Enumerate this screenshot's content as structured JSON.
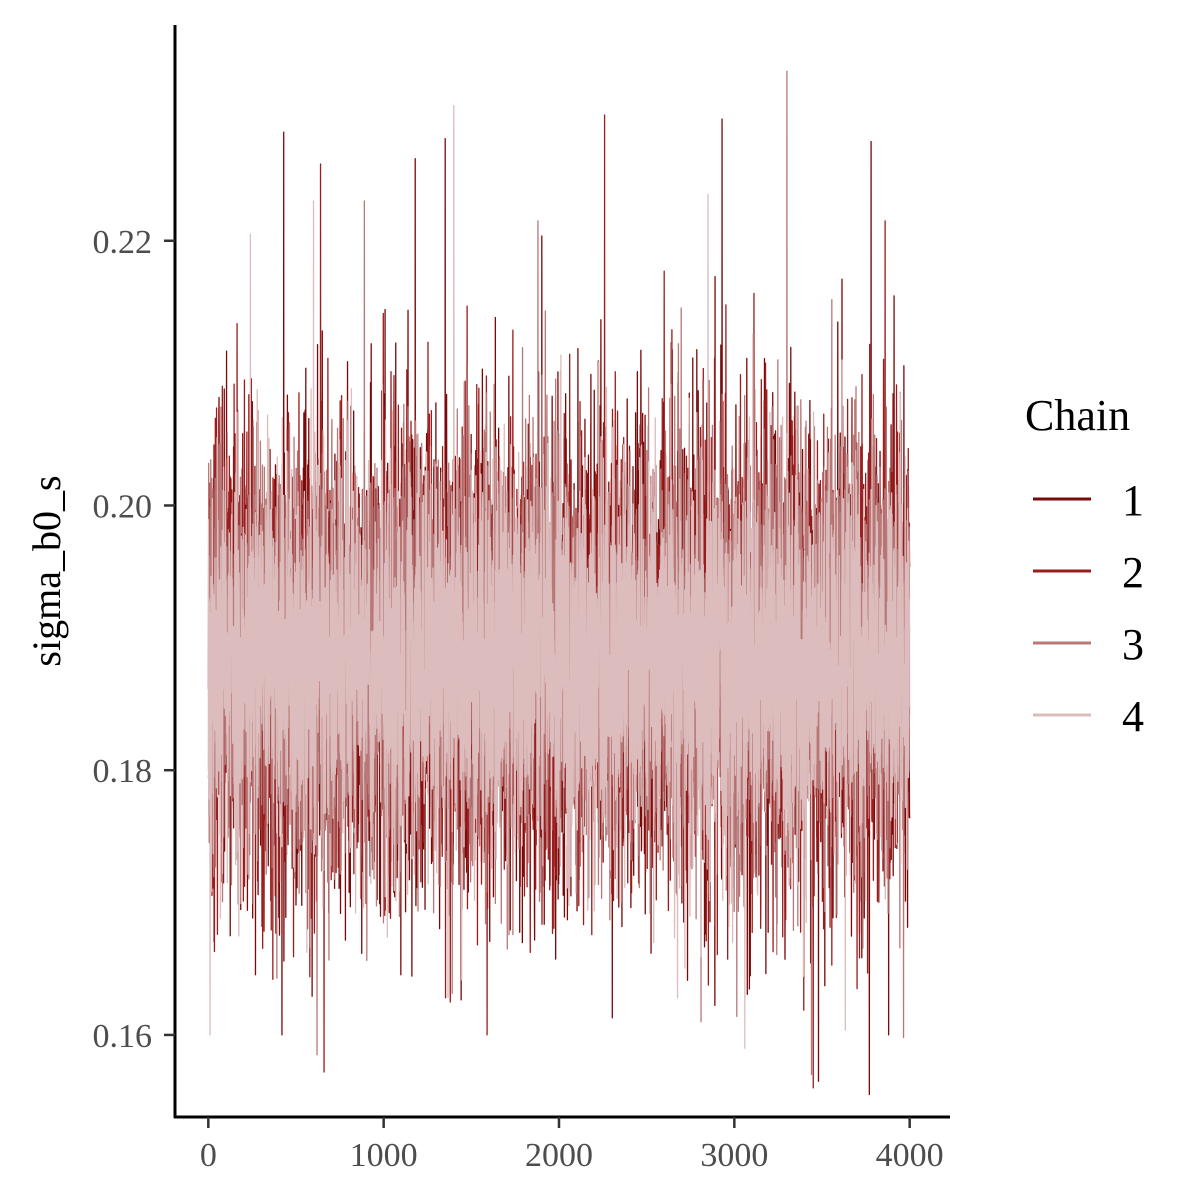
{
  "chart_data": {
    "type": "line",
    "title": "",
    "xlabel": "",
    "ylabel": "sigma_b0_s",
    "xlim": [
      -190,
      4230
    ],
    "ylim": [
      0.1538,
      0.2363
    ],
    "x_ticks": [
      0,
      1000,
      2000,
      3000,
      4000
    ],
    "x_tick_labels": [
      "0",
      "1000",
      "2000",
      "3000",
      "4000"
    ],
    "y_ticks": [
      0.16,
      0.18,
      0.2,
      0.22
    ],
    "y_tick_labels": [
      "0.16",
      "0.18",
      "0.20",
      "0.22"
    ],
    "grid": false,
    "legend": {
      "title": "Chain",
      "position": "right"
    },
    "iterations": 4000,
    "center": 0.1885,
    "band_core": [
      0.1775,
      0.2005
    ],
    "series": [
      {
        "name": "1",
        "color": "#7a0a0a",
        "seed": 11,
        "spread": 0.0085,
        "spikes": [
          [
            430,
            0.2282
          ],
          [
            1180,
            0.2262
          ],
          [
            2930,
            0.2292
          ],
          [
            3780,
            0.2275
          ],
          [
            3770,
            0.1555
          ],
          [
            3480,
            0.1565
          ],
          [
            420,
            0.16
          ],
          [
            3880,
            0.16
          ]
        ]
      },
      {
        "name": "2",
        "color": "#9b1c1c",
        "seed": 23,
        "spread": 0.0082,
        "spikes": [
          [
            640,
            0.2258
          ],
          [
            1590,
            0.2218
          ],
          [
            2260,
            0.2295
          ],
          [
            3860,
            0.2215
          ],
          [
            660,
            0.1572
          ],
          [
            1590,
            0.16
          ],
          [
            3450,
            0.156
          ],
          [
            3700,
            0.1635
          ]
        ]
      },
      {
        "name": "3",
        "color": "#b87878",
        "seed": 37,
        "spread": 0.0078,
        "spikes": [
          [
            3300,
            0.2328
          ],
          [
            890,
            0.223
          ],
          [
            1880,
            0.2215
          ],
          [
            620,
            0.1585
          ],
          [
            3440,
            0.157
          ],
          [
            2810,
            0.161
          ]
        ]
      },
      {
        "name": "4",
        "color": "#dcbcbc",
        "seed": 53,
        "spread": 0.0074,
        "spikes": [
          [
            1400,
            0.2302
          ],
          [
            2850,
            0.2235
          ],
          [
            10,
            0.16
          ],
          [
            3060,
            0.159
          ],
          [
            600,
            0.223
          ],
          [
            240,
            0.2205
          ]
        ]
      }
    ]
  }
}
